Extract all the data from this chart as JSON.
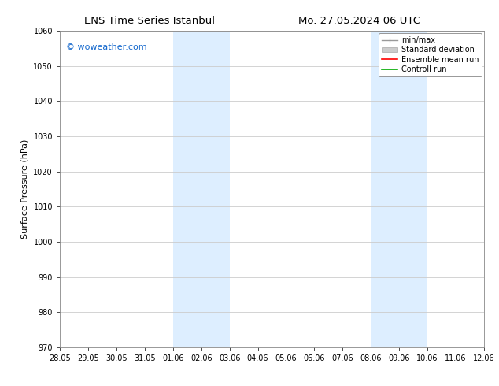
{
  "title_left": "ENS Time Series Istanbul",
  "title_right": "Mo. 27.05.2024 06 UTC",
  "ylabel": "Surface Pressure (hPa)",
  "ylim": [
    970,
    1060
  ],
  "yticks": [
    970,
    980,
    990,
    1000,
    1010,
    1020,
    1030,
    1040,
    1050,
    1060
  ],
  "x_tick_labels": [
    "28.05",
    "29.05",
    "30.05",
    "31.05",
    "01.06",
    "02.06",
    "03.06",
    "04.06",
    "05.06",
    "06.06",
    "07.06",
    "08.06",
    "09.06",
    "10.06",
    "11.06",
    "12.06"
  ],
  "x_tick_positions": [
    0,
    1,
    2,
    3,
    4,
    5,
    6,
    7,
    8,
    9,
    10,
    11,
    12,
    13,
    14,
    15
  ],
  "shaded_regions": [
    {
      "x_start": 4,
      "x_end": 6
    },
    {
      "x_start": 11,
      "x_end": 13
    }
  ],
  "shaded_color": "#ddeeff",
  "watermark": "© woweather.com",
  "watermark_color": "#1166cc",
  "legend_labels": [
    "min/max",
    "Standard deviation",
    "Ensemble mean run",
    "Controll run"
  ],
  "legend_line_colors": [
    "#999999",
    "#bbbbbb",
    "#ff0000",
    "#00aa00"
  ],
  "background_color": "#ffffff",
  "grid_color": "#cccccc",
  "title_fontsize": 9.5,
  "axis_label_fontsize": 8,
  "tick_fontsize": 7,
  "legend_fontsize": 7,
  "watermark_fontsize": 8
}
